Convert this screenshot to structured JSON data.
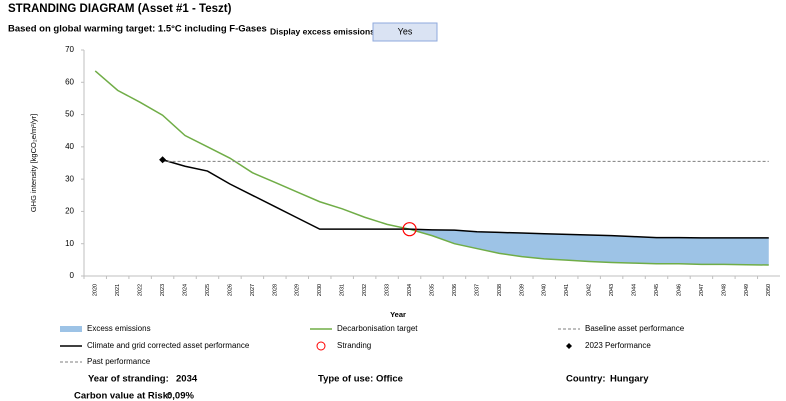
{
  "chart_data": {
    "type": "line",
    "title": "STRANDING DIAGRAM (Asset #1 - Teszt)",
    "subtitle": "Based on global warming target: 1.5°C including F-Gases",
    "toggle": {
      "label": "Display excess emissions:",
      "value": "Yes"
    },
    "y_label": "GHG intensity [kgCO₂e/m²/yr]",
    "x_label": "Year",
    "ylim": [
      0,
      70
    ],
    "yticks": [
      0,
      10,
      20,
      30,
      40,
      50,
      60,
      70
    ],
    "categories": [
      2020,
      2021,
      2022,
      2023,
      2024,
      2025,
      2026,
      2027,
      2028,
      2029,
      2030,
      2031,
      2032,
      2033,
      2034,
      2035,
      2036,
      2037,
      2038,
      2039,
      2040,
      2041,
      2042,
      2043,
      2044,
      2045,
      2046,
      2047,
      2048,
      2049,
      2050
    ],
    "series": [
      {
        "name": "Decarbonisation target",
        "color": "#70ad47",
        "values": [
          63.5,
          57.5,
          53.8,
          49.8,
          43.5,
          40,
          36.5,
          32,
          29,
          26,
          23,
          20.8,
          18.2,
          16,
          14.5,
          12.5,
          10,
          8.5,
          7,
          6,
          5.3,
          4.9,
          4.5,
          4.2,
          4,
          3.8,
          3.8,
          3.6,
          3.6,
          3.5,
          3.4
        ]
      },
      {
        "name": "Climate and grid corrected asset performance",
        "color": "#000000",
        "values": [
          null,
          null,
          null,
          36,
          34,
          32.5,
          28.5,
          25,
          21.5,
          18,
          14.5,
          14.5,
          14.5,
          14.5,
          14.5,
          14.3,
          14.2,
          13.7,
          13.5,
          13.3,
          13.1,
          12.9,
          12.7,
          12.5,
          12.2,
          11.9,
          11.9,
          11.8,
          11.8,
          11.8,
          11.8
        ]
      },
      {
        "name": "Baseline asset performance",
        "color": "#7f7f7f",
        "values": [
          null,
          null,
          null,
          35.5,
          35.5,
          35.5,
          35.5,
          35.5,
          35.5,
          35.5,
          35.5,
          35.5,
          35.5,
          35.5,
          35.5,
          35.5,
          35.5,
          35.5,
          35.5,
          35.5,
          35.5,
          35.5,
          35.5,
          35.5,
          35.5,
          35.5,
          35.5,
          35.5,
          35.5,
          35.5,
          35.5
        ]
      }
    ],
    "excess_emissions": {
      "name": "Excess emissions",
      "color": "#9dc3e6"
    },
    "stranding": {
      "name": "Stranding",
      "color": "#ff0000",
      "year": 2034,
      "value": 14.5
    },
    "current_performance": {
      "name": "2023 Performance",
      "color": "#000000",
      "year": 2023,
      "value": 36
    },
    "past_performance": {
      "name": "Past performance",
      "color": "#7f7f7f"
    }
  },
  "info": {
    "year_of_stranding": {
      "label": "Year of stranding:",
      "value": 2034
    },
    "type_of_use": {
      "label": "Type of use:",
      "value": "Office"
    },
    "country": {
      "label": "Country:",
      "value": "Hungary"
    },
    "carbon_value_at_risk": {
      "label": "Carbon value at Risk:",
      "value": "0,09%"
    }
  }
}
